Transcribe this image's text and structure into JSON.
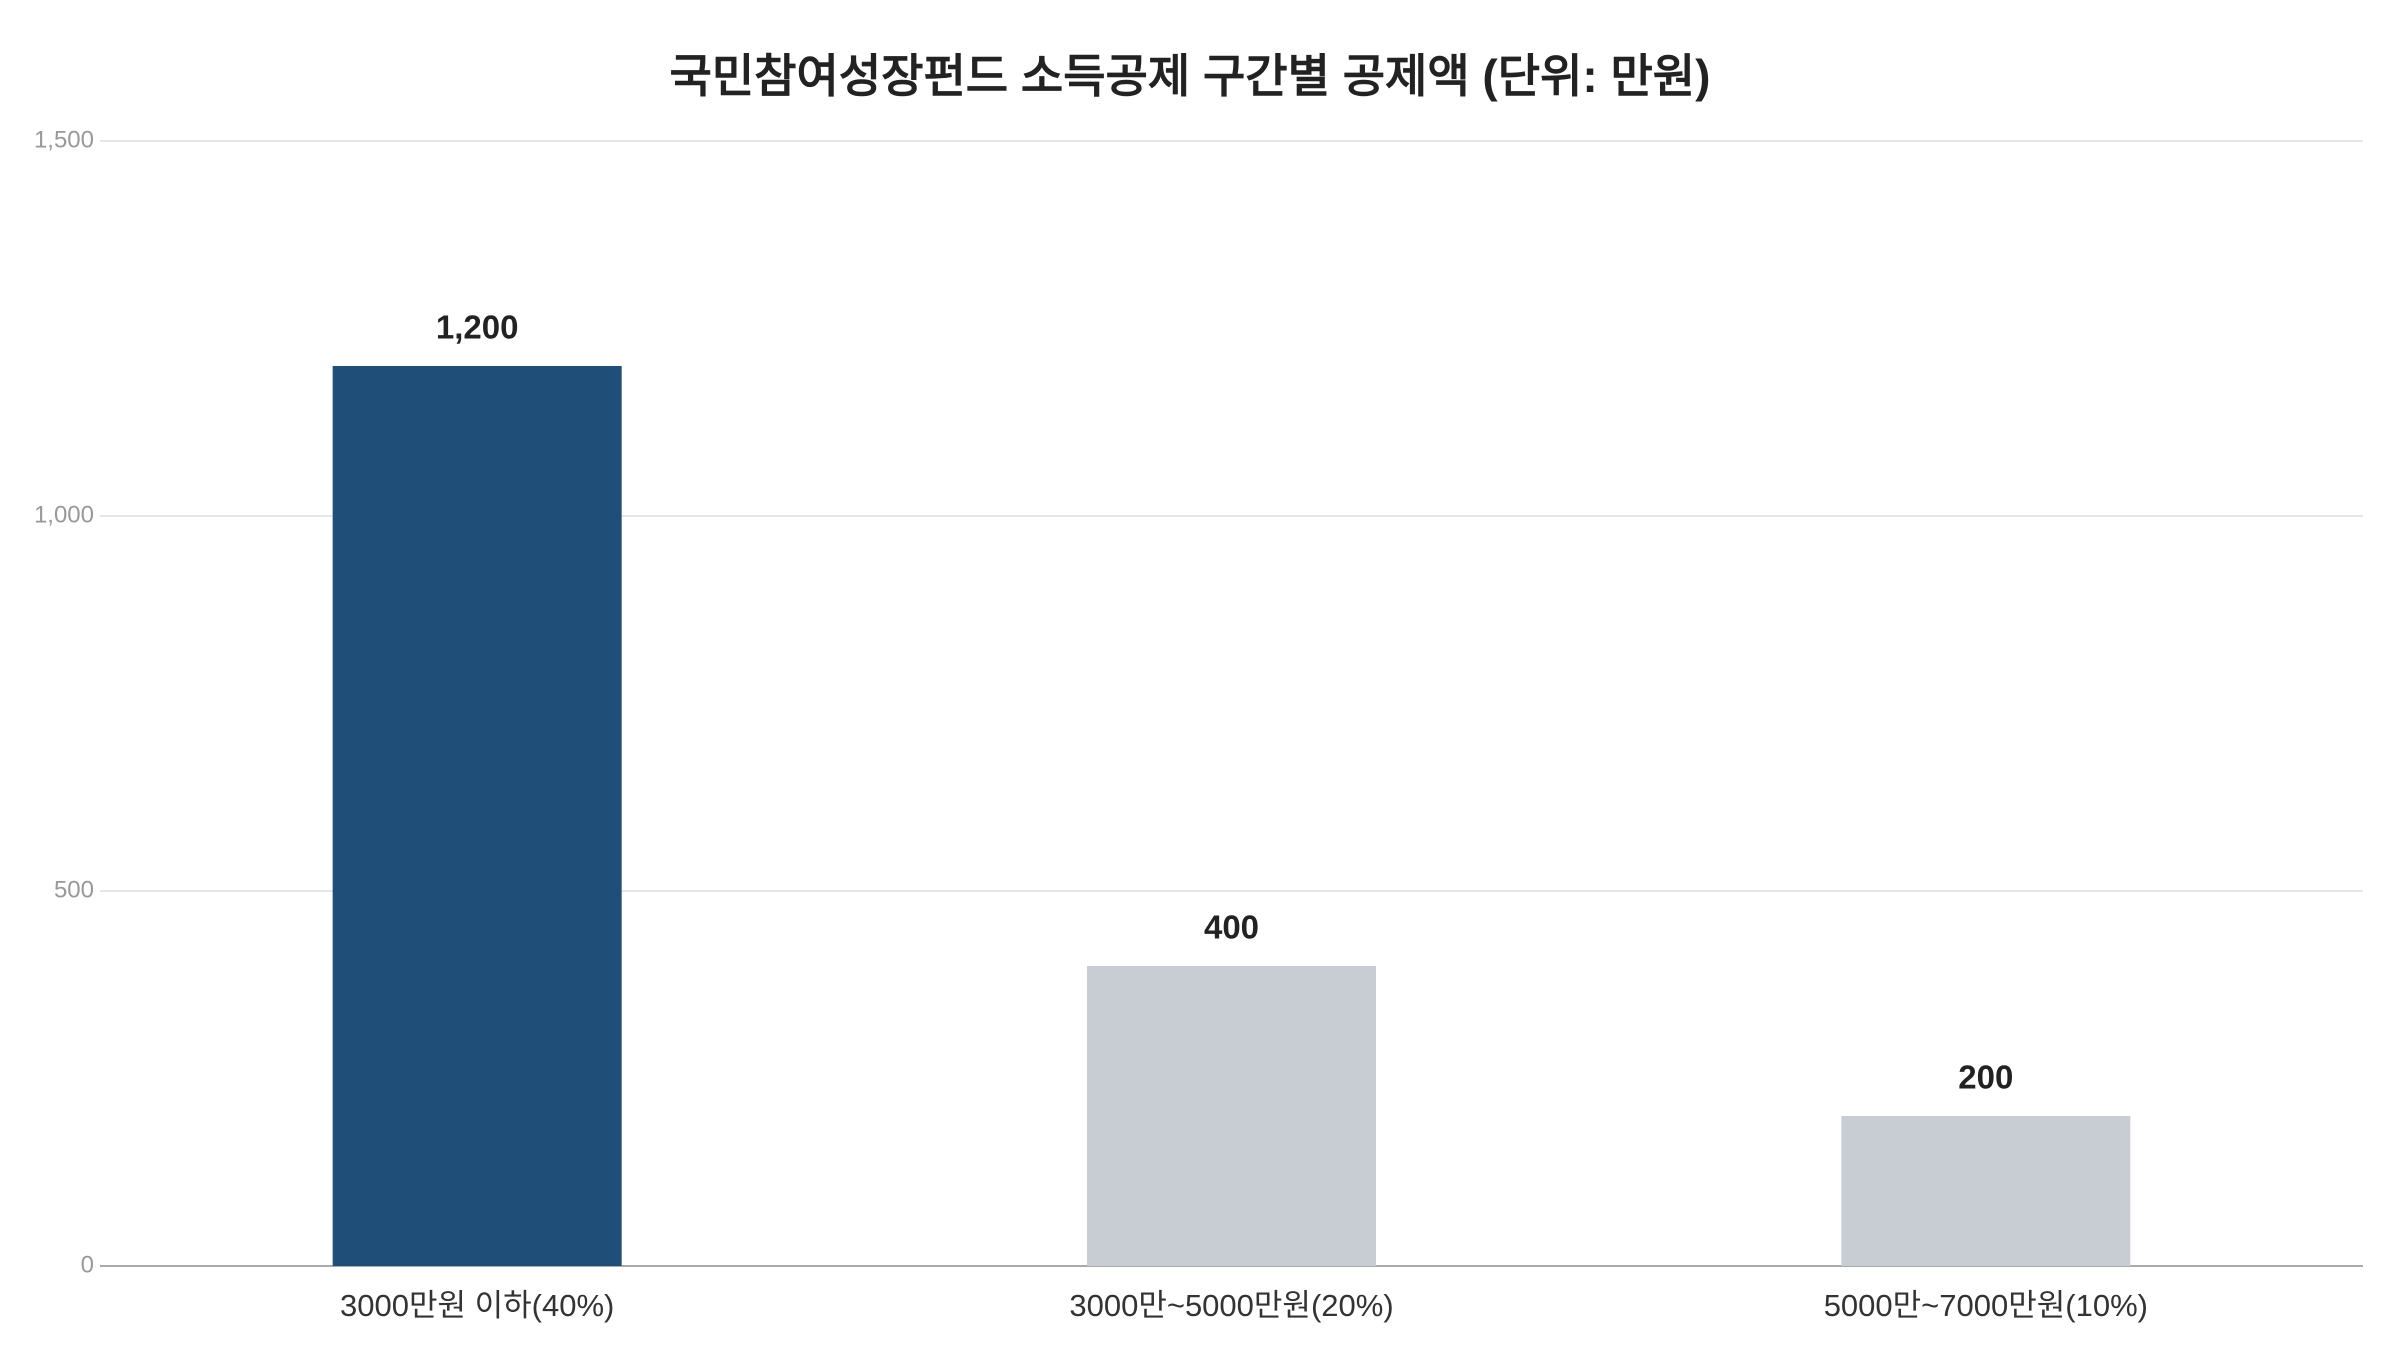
{
  "chart_data": {
    "type": "bar",
    "title": "국민참여성장펀드 소득공제 구간별 공제액 (단위: 만원)",
    "categories": [
      "3000만원 이하(40%)",
      "3000만~5000만원(20%)",
      "5000만~7000만원(10%)"
    ],
    "values": [
      1200,
      400,
      200
    ],
    "value_labels": [
      "1,200",
      "400",
      "200"
    ],
    "colors": [
      "#1f4e79",
      "#c8cdd4",
      "#c8cdd4"
    ],
    "ylim": [
      0,
      1500
    ],
    "yticks": [
      0,
      500,
      {
        "value": 1000,
        "label": "1,000"
      },
      {
        "value": 1500,
        "label": "1,500"
      }
    ],
    "grid": true
  }
}
